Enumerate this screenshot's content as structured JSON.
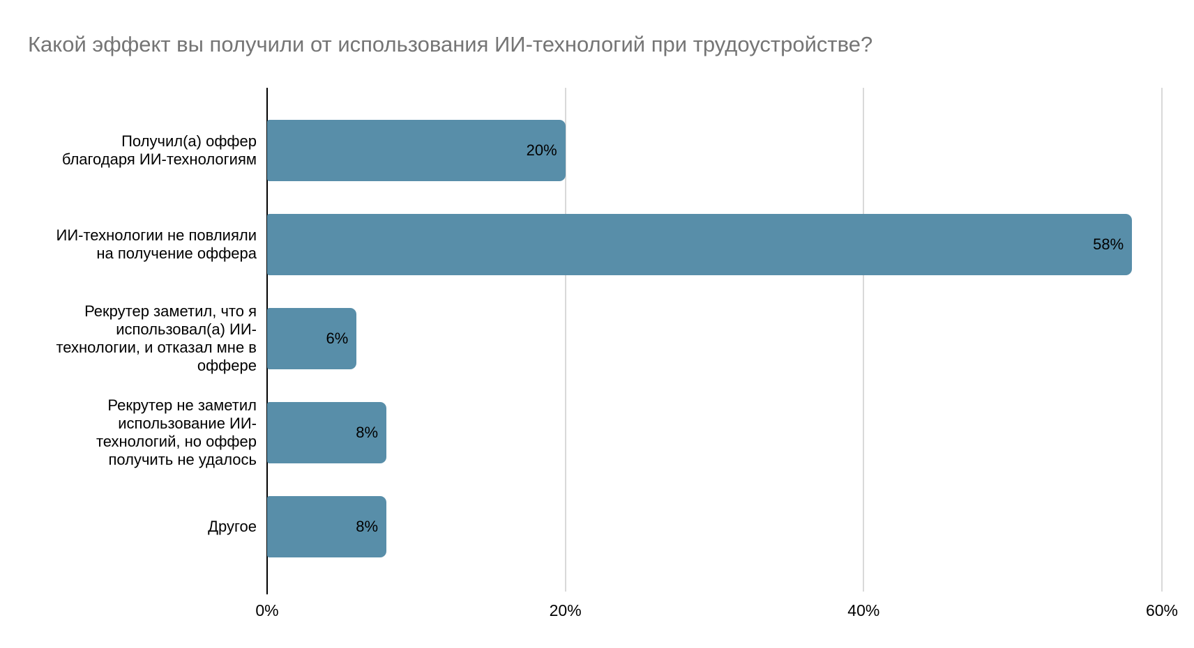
{
  "title": "Какой эффект вы получили от использования ИИ-технологий при трудоустройстве?",
  "chart_data": {
    "type": "bar",
    "orientation": "horizontal",
    "title": "Какой эффект вы получили от использования ИИ-технологий при трудоустройстве?",
    "categories": [
      "Получил(а) оффер благодаря ИИ-технологиям",
      "ИИ-технологии не повлияли на получение оффера",
      "Рекрутер заметил, что я использовал(а) ИИ-технологии, и отказал мне в оффере",
      "Рекрутер не заметил использование ИИ-технологий, но оффер получить не удалось",
      "Другое"
    ],
    "category_lines": [
      [
        "Получил(а) оффер",
        "благодаря ИИ-технологиям"
      ],
      [
        "ИИ-технологии не повлияли",
        "на получение оффера"
      ],
      [
        "Рекрутер заметил, что я",
        "использовал(а) ИИ-",
        "технологии, и отказал мне в",
        "оффере"
      ],
      [
        "Рекрутер не заметил",
        "использование ИИ-",
        "технологий, но оффер",
        "получить не удалось"
      ],
      [
        "Другое"
      ]
    ],
    "values": [
      20,
      58,
      6,
      8,
      8
    ],
    "value_labels": [
      "20%",
      "58%",
      "6%",
      "8%",
      "8%"
    ],
    "xlim": [
      0,
      60
    ],
    "x_ticks": [
      {
        "value": 0,
        "label": "0%"
      },
      {
        "value": 20,
        "label": "20%"
      },
      {
        "value": 40,
        "label": "40%"
      },
      {
        "value": 60,
        "label": "60%"
      }
    ],
    "xlabel": "",
    "ylabel": "",
    "legend": "none",
    "grid": "vertical",
    "bar_color": "#588ea9",
    "value_label_color": "#000000",
    "grid_color": "#d9d9d9",
    "axis_color": "#000000",
    "title_color": "#757575"
  }
}
